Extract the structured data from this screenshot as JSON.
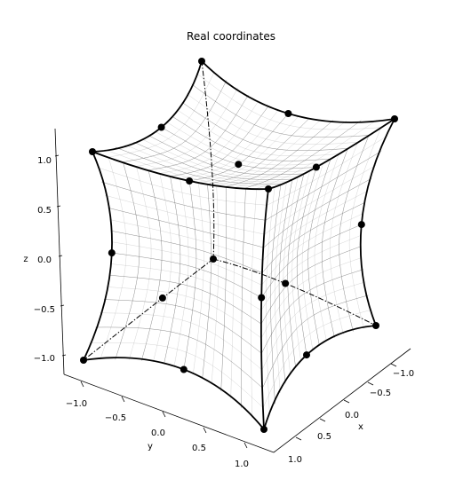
{
  "chart_data": {
    "type": "3d-wireframe",
    "title": "Real coordinates",
    "axes": {
      "x": {
        "label": "x",
        "ticks": [
          "−1.0",
          "−0.5",
          "0.0",
          "0.5",
          "1.0"
        ]
      },
      "y": {
        "label": "y",
        "ticks": [
          "−1.0",
          "−0.5",
          "0.0",
          "0.5",
          "1.0"
        ]
      },
      "z": {
        "label": "z",
        "ticks": [
          "−1.0",
          "−0.5",
          "0.0",
          "0.5",
          "1.0"
        ]
      }
    },
    "xlim": [
      -1,
      1
    ],
    "ylim": [
      -1,
      1
    ],
    "zlim": [
      -1,
      1
    ],
    "grid": false,
    "surface": "cube with concave faces",
    "nodes_visible": [
      {
        "x": -1,
        "y": -1,
        "z": 1
      },
      {
        "x": 1,
        "y": -1,
        "z": 1
      },
      {
        "x": -1,
        "y": 1,
        "z": 1
      },
      {
        "x": 1,
        "y": 1,
        "z": 1
      },
      {
        "x": 0,
        "y": 0,
        "z": 1
      },
      {
        "x": 0,
        "y": -1,
        "z": 1
      },
      {
        "x": -1,
        "y": 0,
        "z": 1
      },
      {
        "x": 1,
        "y": 0,
        "z": 1
      },
      {
        "x": 0,
        "y": 1,
        "z": 1
      },
      {
        "x": -1,
        "y": 1,
        "z": -1
      },
      {
        "x": 1,
        "y": 1,
        "z": -1
      },
      {
        "x": 1,
        "y": -1,
        "z": -1
      },
      {
        "x": 0,
        "y": 1,
        "z": -1
      },
      {
        "x": 1,
        "y": 0,
        "z": -1
      },
      {
        "x": -1,
        "y": 1,
        "z": 0
      },
      {
        "x": 1,
        "y": 1,
        "z": 0
      },
      {
        "x": 1,
        "y": -1,
        "z": 0
      },
      {
        "x": 0,
        "y": 1,
        "z": 0
      },
      {
        "x": 1,
        "y": 0,
        "z": 0
      },
      {
        "x": -1,
        "y": -1,
        "z": -1
      },
      {
        "x": 0,
        "y": 0,
        "z": -1
      }
    ]
  }
}
